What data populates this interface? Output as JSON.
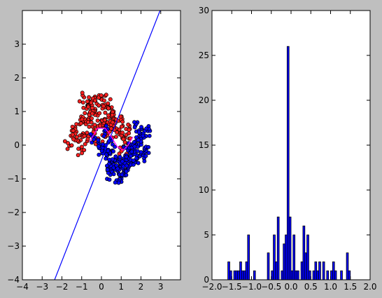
{
  "chart_data": [
    {
      "type": "scatter",
      "title": "",
      "xlabel": "",
      "ylabel": "",
      "xlim": [
        -4,
        4
      ],
      "ylim": [
        -4,
        4
      ],
      "x_ticks": [
        -4,
        -3,
        -2,
        -1,
        0,
        1,
        2,
        3
      ],
      "x_tick_labels": [
        "−4",
        "−3",
        "−2",
        "−1",
        "0",
        "1",
        "2",
        "3"
      ],
      "y_ticks": [
        -4,
        -3,
        -2,
        -1,
        0,
        1,
        2,
        3
      ],
      "y_tick_labels": [
        "−4",
        "−3",
        "−2",
        "−1",
        "0",
        "1",
        "2",
        "3"
      ],
      "grid": false,
      "series": [
        {
          "kind": "points",
          "color": "#ff2020",
          "approx_count": 250,
          "x": [
            -1.62,
            -1.41,
            -1.1,
            -0.93,
            -0.71,
            -0.58,
            -0.84,
            -1.25,
            -0.46,
            -0.31,
            -0.12,
            -0.45,
            -0.72,
            -0.19,
            0.02,
            0.17,
            -0.05,
            0.33,
            0.51,
            0.68,
            0.87,
            1.02,
            1.18,
            1.32,
            1.05,
            0.78,
            0.44,
            0.21,
            -0.27,
            -0.63,
            -1.02,
            -0.88,
            -0.52,
            0.12,
            0.61,
            0.93,
            1.25,
            0.36,
            -0.15,
            -0.98,
            -1.55,
            0.55
          ],
          "y": [
            -0.02,
            0.48,
            0.62,
            0.35,
            1.18,
            0.82,
            0.71,
            0.18,
            1.32,
            1.05,
            1.48,
            0.55,
            0.12,
            0.88,
            1.35,
            1.12,
            0.62,
            1.22,
            0.95,
            0.78,
            0.72,
            0.55,
            0.22,
            0.05,
            -0.12,
            0.38,
            0.45,
            0.25,
            0.48,
            0.92,
            0.85,
            1.42,
            1.26,
            0.66,
            0.58,
            0.32,
            0.48,
            0.82,
            0.18,
            -0.15,
            0.28,
            1.02
          ]
        },
        {
          "kind": "points",
          "color": "#0000ff",
          "approx_count": 250,
          "x": [
            -0.32,
            -0.12,
            0.08,
            0.28,
            0.42,
            0.62,
            0.81,
            1.01,
            1.22,
            1.38,
            1.58,
            1.78,
            1.95,
            2.12,
            2.35,
            0.15,
            0.35,
            0.55,
            0.75,
            0.95,
            1.15,
            1.35,
            1.55,
            1.75,
            1.92,
            2.05,
            0.05,
            0.25,
            0.48,
            0.68,
            0.88,
            1.08,
            1.28,
            1.48,
            1.68,
            1.88,
            0.45,
            0.92,
            1.45,
            1.82,
            2.18,
            2.02
          ],
          "y": [
            0.22,
            0.02,
            -0.18,
            -0.32,
            -0.48,
            -0.58,
            -0.72,
            -0.92,
            -0.78,
            -0.62,
            -0.52,
            -0.41,
            -0.33,
            -0.22,
            0.42,
            0.42,
            0.08,
            -0.16,
            -0.38,
            -0.54,
            -0.46,
            -0.16,
            0.02,
            0.12,
            0.28,
            0.48,
            -0.08,
            -0.28,
            -0.62,
            -0.72,
            -0.85,
            -0.68,
            -0.42,
            -0.32,
            -0.52,
            -0.02,
            -0.88,
            -1.02,
            -0.22,
            0.68,
            -0.12,
            0.18
          ]
        },
        {
          "kind": "line",
          "color": "#0000ff",
          "x": [
            -2.37,
            3.0
          ],
          "y": [
            -4.0,
            4.05
          ]
        },
        {
          "kind": "line",
          "color": "#ff00ff",
          "x": [
            -0.6,
            -0.2,
            0.2,
            0.5,
            0.8,
            1.1,
            1.35,
            1.6
          ],
          "y": [
            0.1,
            0.5,
            0.5,
            0.25,
            -0.05,
            -0.15,
            0.0,
            0.25
          ]
        }
      ]
    },
    {
      "type": "bar",
      "title": "",
      "xlabel": "",
      "ylabel": "",
      "xlim": [
        -2.0,
        2.0
      ],
      "ylim": [
        0,
        30
      ],
      "x_ticks": [
        -2.0,
        -1.5,
        -1.0,
        -0.5,
        0.0,
        0.5,
        1.0,
        1.5,
        2.0
      ],
      "x_tick_labels": [
        "−2.0",
        "−1.5",
        "−1.0",
        "−0.5",
        "0.0",
        "0.5",
        "1.0",
        "1.5",
        "2.0"
      ],
      "y_ticks": [
        0,
        5,
        10,
        15,
        20,
        25,
        30
      ],
      "y_tick_labels": [
        "0",
        "5",
        "10",
        "15",
        "20",
        "25",
        "30"
      ],
      "grid": false,
      "bar_color": "#0000ff",
      "bin_width": 0.05,
      "bin_lefts": [
        -1.6,
        -1.55,
        -1.45,
        -1.4,
        -1.35,
        -1.3,
        -1.25,
        -1.2,
        -1.15,
        -1.1,
        -0.95,
        -0.6,
        -0.5,
        -0.45,
        -0.4,
        -0.35,
        -0.25,
        -0.2,
        -0.15,
        -0.1,
        -0.05,
        0.0,
        0.05,
        0.1,
        0.15,
        0.25,
        0.3,
        0.35,
        0.4,
        0.45,
        0.55,
        0.6,
        0.65,
        0.7,
        0.8,
        0.9,
        1.0,
        1.05,
        1.1,
        1.25,
        1.4,
        1.45
      ],
      "values": [
        2,
        1,
        1,
        1,
        1,
        2,
        1,
        1,
        2,
        5,
        1,
        3,
        1,
        5,
        2,
        7,
        1,
        4,
        5,
        26,
        7,
        1,
        5,
        1,
        1,
        2,
        6,
        3,
        5,
        1,
        1,
        2,
        1,
        2,
        2,
        1,
        1,
        2,
        1,
        1,
        3,
        1
      ]
    }
  ]
}
